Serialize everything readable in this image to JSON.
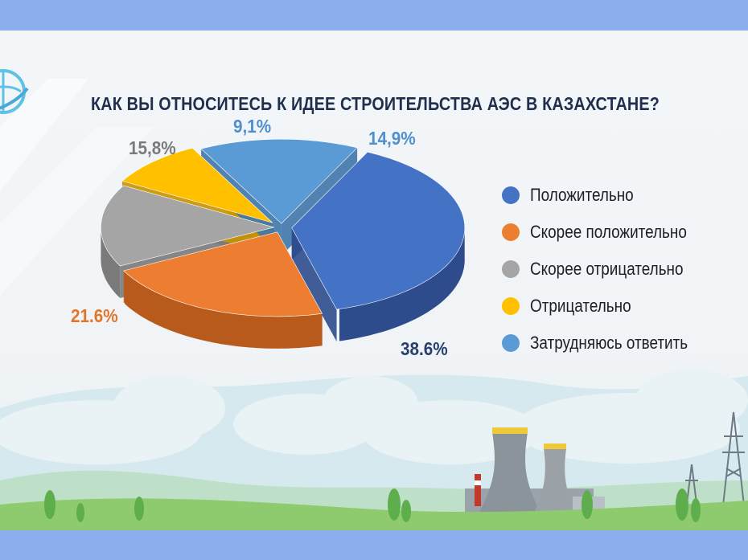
{
  "title": "КАК ВЫ ОТНОСИТЕСЬ К ИДЕЕ СТРОИТЕЛЬСТВА АЭС В КАЗАХСТАНЕ?",
  "chart_data": {
    "type": "pie",
    "title": "КАК ВЫ ОТНОСИТЕСЬ К ИДЕЕ СТРОИТЕЛЬСТВА АЭС В КАЗАХСТАНЕ?",
    "legend_position": "right",
    "slices": [
      {
        "name": "Положительно",
        "value": 38.6,
        "label": "38.6%",
        "color": "#4472c4",
        "side": "#2e4c8c"
      },
      {
        "name": "Скорее положительно",
        "value": 21.6,
        "label": "21.6%",
        "color": "#ed7d31",
        "side": "#b85a1c"
      },
      {
        "name": "Скорее отрицательно",
        "value": 15.8,
        "label": "15,8%",
        "color": "#a5a5a5",
        "side": "#7a7a7a"
      },
      {
        "name": "Отрицательно",
        "value": 9.1,
        "label": "9,1%",
        "color": "#ffc000",
        "side": "#c99400"
      },
      {
        "name": "Затрудняюсь ответить",
        "value": 14.9,
        "label": "14,9%",
        "color": "#5b9bd5",
        "side": "#3f77aa"
      }
    ]
  },
  "legend": [
    {
      "label": "Положительно",
      "color": "#4472c4"
    },
    {
      "label": "Скорее положительно",
      "color": "#ed7d31"
    },
    {
      "label": "Скорее отрицательно",
      "color": "#a5a5a5"
    },
    {
      "label": "Отрицательно",
      "color": "#ffc000"
    },
    {
      "label": "Затрудняюсь ответить",
      "color": "#5b9bd5"
    }
  ],
  "label_colors": {
    "Положительно": "#2b3f6b",
    "Скорее положительно": "#e2752b",
    "Скорее отрицательно": "#7b7b7b",
    "Отрицательно": "#4f8fd0",
    "Затрудняюсь ответить": "#4f8fd0"
  },
  "icons": [
    "logo-icon",
    "cooling-tower-icon",
    "power-pylon-icon",
    "tree-icon",
    "cloud-icon"
  ]
}
